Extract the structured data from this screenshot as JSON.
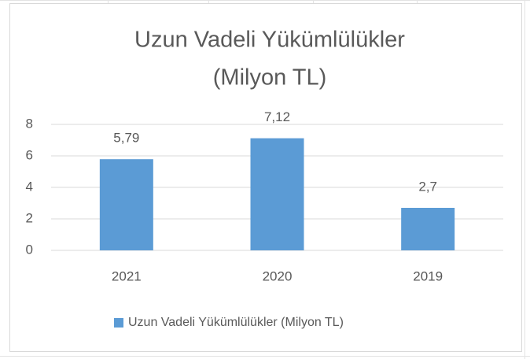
{
  "chart_data": {
    "type": "bar",
    "title": [
      "Uzun Vadeli Yükümlülükler",
      "(Milyon TL)"
    ],
    "categories": [
      "2021",
      "2020",
      "2019"
    ],
    "series": [
      {
        "name": "Uzun Vadeli Yükümlülükler (Milyon TL)",
        "color": "#5b9bd5",
        "values": [
          5.79,
          7.12,
          2.7
        ],
        "value_labels": [
          "5,79",
          "7,12",
          "2,7"
        ]
      }
    ],
    "ylim": [
      0,
      8
    ],
    "yticks": [
      0,
      2,
      4,
      6,
      8
    ],
    "grid": true,
    "legend": "bottom"
  }
}
